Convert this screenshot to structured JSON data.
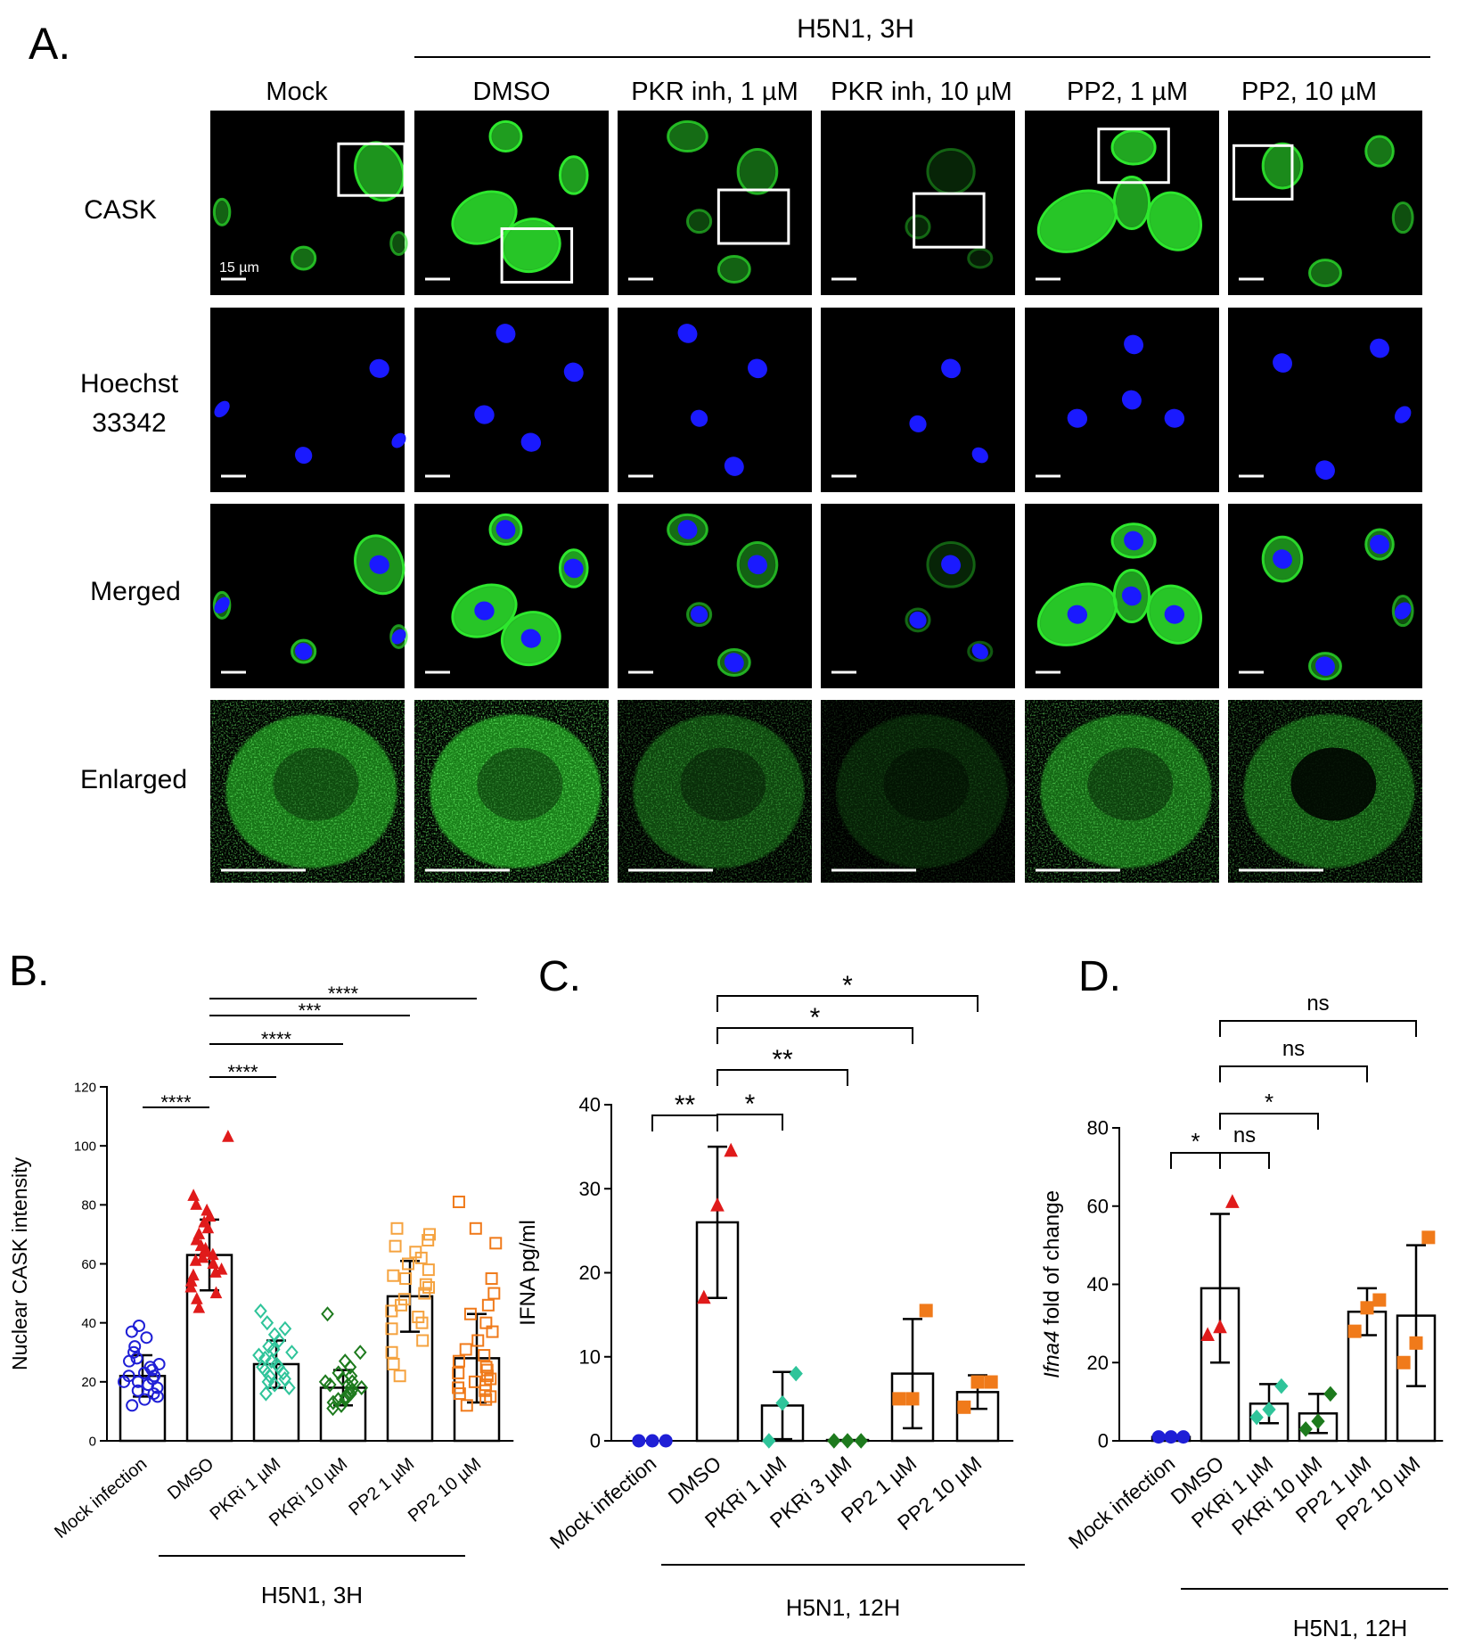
{
  "panel_a": {
    "letter": "A.",
    "group_label": "H5N1, 3H",
    "columns": [
      "Mock",
      "DMSO",
      "PKR inh, 1 µM",
      "PKR inh, 10 µM",
      "PP2, 1 µM",
      "PP2, 10 µM"
    ],
    "rows": [
      "CASK",
      "Hoechst 33342",
      "Merged",
      "Enlarged"
    ],
    "scale_bar_label": "15 µm",
    "colors": {
      "cask": "#2ee82e",
      "hoechst": "#1a1aff",
      "background": "#000000"
    }
  },
  "chart_data": [
    {
      "panel": "B.",
      "type": "bar",
      "ylabel": "Nuclear CASK intensity",
      "group_label": "H5N1, 3H",
      "ylim": [
        0,
        120
      ],
      "yticks": [
        0,
        20,
        40,
        60,
        80,
        100,
        120
      ],
      "categories": [
        "Mock infection",
        "DMSO",
        "PKRi 1 µM",
        "PKRi 10 µM",
        "PP2 1 µM",
        "PP2 10 µM"
      ],
      "values": [
        22,
        63,
        26,
        18,
        49,
        28
      ],
      "errors": [
        7,
        12,
        8,
        6,
        12,
        15
      ],
      "markers": [
        "circle-open",
        "triangle",
        "diamond-open",
        "diamond-open",
        "square-open",
        "square-open"
      ],
      "colors": [
        "#1f1fd6",
        "#e01b1b",
        "#2fc49a",
        "#1d7a1d",
        "#f5a340",
        "#f07a1a"
      ],
      "points": [
        [
          12,
          14,
          15,
          16,
          17,
          18,
          19,
          20,
          20,
          21,
          22,
          22,
          23,
          24,
          25,
          26,
          27,
          28,
          30,
          32,
          35,
          37,
          39
        ],
        [
          45,
          48,
          50,
          52,
          54,
          56,
          57,
          58,
          60,
          61,
          62,
          63,
          64,
          65,
          66,
          68,
          70,
          72,
          74,
          76,
          78,
          80,
          83,
          103
        ],
        [
          16,
          18,
          19,
          20,
          21,
          22,
          23,
          24,
          25,
          25,
          26,
          27,
          28,
          29,
          30,
          31,
          32,
          34,
          36,
          38,
          40,
          44
        ],
        [
          11,
          12,
          13,
          14,
          14,
          15,
          16,
          16,
          17,
          18,
          18,
          19,
          20,
          20,
          21,
          22,
          23,
          25,
          27,
          30,
          43
        ],
        [
          22,
          26,
          30,
          34,
          38,
          40,
          42,
          44,
          46,
          48,
          50,
          52,
          53,
          55,
          56,
          58,
          60,
          62,
          64,
          66,
          68,
          70,
          72
        ],
        [
          12,
          14,
          15,
          16,
          17,
          18,
          19,
          20,
          21,
          22,
          23,
          24,
          25,
          27,
          29,
          31,
          34,
          37,
          40,
          43,
          46,
          50,
          55,
          67,
          72,
          81
        ]
      ],
      "significance": [
        {
          "from": 0,
          "to": 1,
          "label": "****"
        },
        {
          "from": 1,
          "to": 2,
          "label": "****"
        },
        {
          "from": 1,
          "to": 3,
          "label": "****"
        },
        {
          "from": 1,
          "to": 4,
          "label": "***"
        },
        {
          "from": 1,
          "to": 5,
          "label": "****"
        }
      ]
    },
    {
      "panel": "C.",
      "type": "bar",
      "ylabel": "IFNA pg/ml",
      "group_label": "H5N1, 12H",
      "ylim": [
        0,
        40
      ],
      "yticks": [
        0,
        10,
        20,
        30,
        40
      ],
      "categories": [
        "Mock infection",
        "DMSO",
        "PKRi 1 µM",
        "PKRi 3 µM",
        "PP2 1 µM",
        "PP2 10 µM"
      ],
      "values": [
        0,
        26,
        4.2,
        0.1,
        8,
        5.8
      ],
      "errors": [
        0,
        9,
        4,
        0,
        6.5,
        2
      ],
      "markers": [
        "circle",
        "triangle",
        "diamond",
        "diamond",
        "square",
        "square"
      ],
      "colors": [
        "#1f1fd6",
        "#e01b1b",
        "#2fc49a",
        "#1d7a1d",
        "#f07a1a",
        "#f07a1a"
      ],
      "points": [
        [
          0,
          0,
          0
        ],
        [
          17,
          28,
          34.5
        ],
        [
          0,
          4.5,
          8
        ],
        [
          0,
          0,
          0
        ],
        [
          5,
          5,
          15.5
        ],
        [
          4,
          7,
          7
        ]
      ],
      "significance": [
        {
          "from": 0,
          "to": 1,
          "label": "**"
        },
        {
          "from": 1,
          "to": 2,
          "label": "*"
        },
        {
          "from": 1,
          "to": 3,
          "label": "**"
        },
        {
          "from": 1,
          "to": 4,
          "label": "*"
        },
        {
          "from": 1,
          "to": 5,
          "label": "*"
        }
      ]
    },
    {
      "panel": "D.",
      "type": "bar",
      "ylabel_italic": "Ifna4",
      "ylabel_rest": " fold of change",
      "group_label": "H5N1, 12H",
      "ylim": [
        0,
        80
      ],
      "yticks": [
        0,
        20,
        40,
        60,
        80
      ],
      "categories": [
        "Mock infection",
        "DMSO",
        "PKRi 1 µM",
        "PKRi 10 µM",
        "PP2 1 µM",
        "PP2 10 µM"
      ],
      "values": [
        1,
        39,
        9.5,
        7,
        33,
        32
      ],
      "errors": [
        0,
        19,
        5,
        5,
        6,
        18
      ],
      "markers": [
        "circle",
        "triangle",
        "diamond",
        "diamond",
        "square",
        "square"
      ],
      "colors": [
        "#1f1fd6",
        "#e01b1b",
        "#2fc49a",
        "#1d7a1d",
        "#f07a1a",
        "#f07a1a"
      ],
      "points": [
        [
          1,
          1,
          1
        ],
        [
          27,
          29,
          61
        ],
        [
          6,
          8,
          14
        ],
        [
          3,
          5,
          12
        ],
        [
          28,
          34,
          36
        ],
        [
          20,
          25,
          52
        ]
      ],
      "significance": [
        {
          "from": 0,
          "to": 1,
          "label": "*"
        },
        {
          "from": 1,
          "to": 2,
          "label": "ns"
        },
        {
          "from": 1,
          "to": 3,
          "label": "*"
        },
        {
          "from": 1,
          "to": 4,
          "label": "ns"
        },
        {
          "from": 1,
          "to": 5,
          "label": "ns"
        }
      ]
    }
  ]
}
